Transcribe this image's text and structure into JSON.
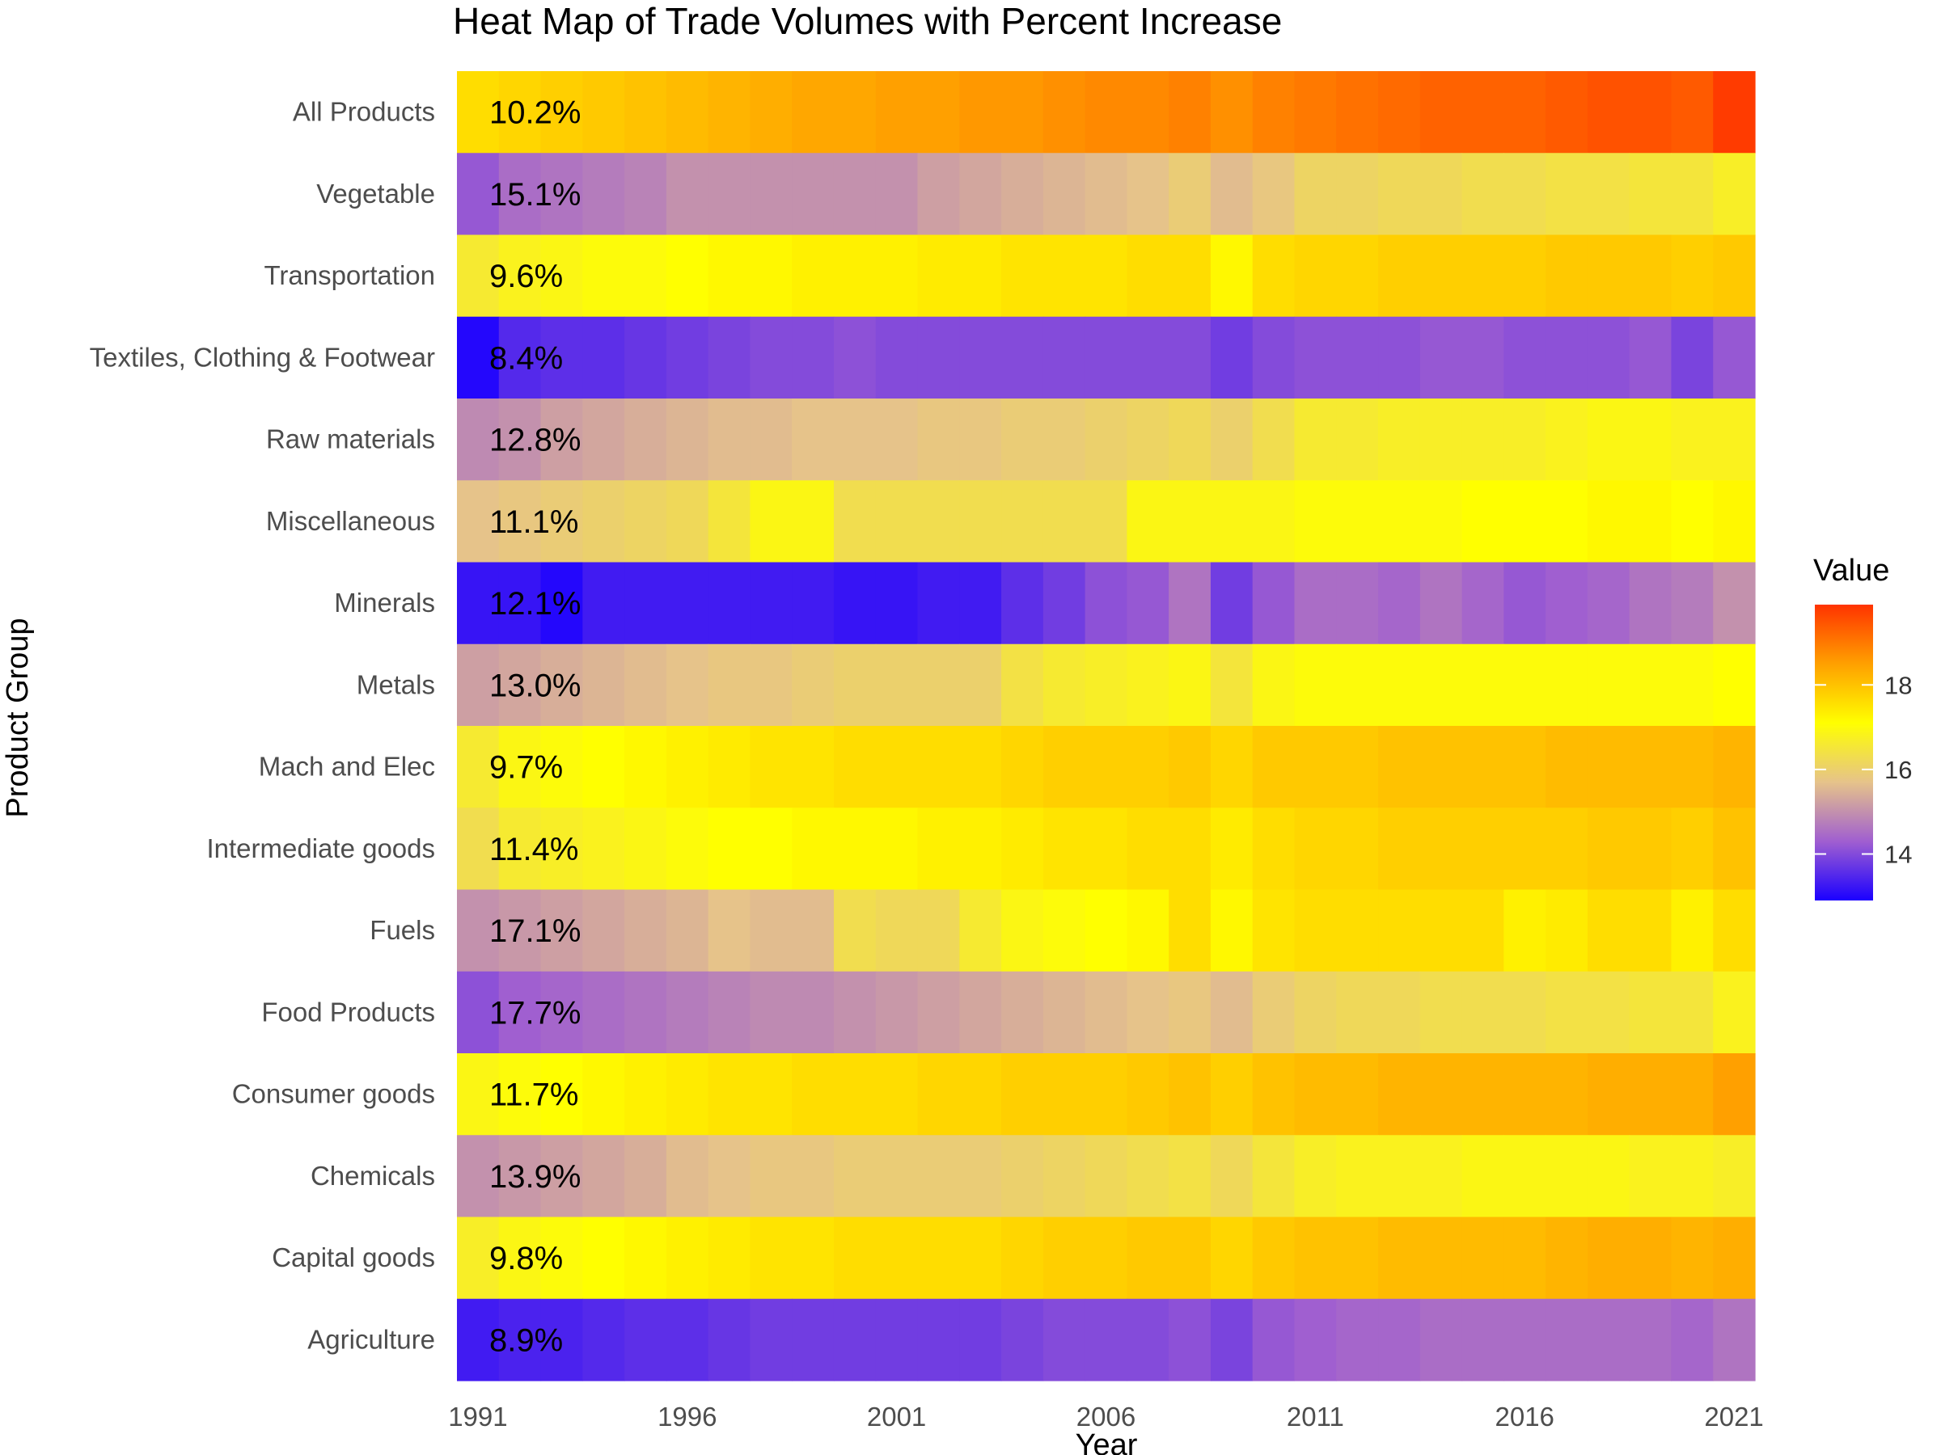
{
  "chart_data": {
    "type": "heatmap",
    "title": "Heat Map of Trade Volumes with Percent Increase",
    "xlabel": "Year",
    "ylabel": "Product Group",
    "x_ticks": [
      1991,
      1996,
      2001,
      2006,
      2011,
      2016,
      2021
    ],
    "years": [
      1991,
      1992,
      1993,
      1994,
      1995,
      1996,
      1997,
      1998,
      1999,
      2000,
      2001,
      2002,
      2003,
      2004,
      2005,
      2006,
      2007,
      2008,
      2009,
      2010,
      2011,
      2012,
      2013,
      2014,
      2015,
      2016,
      2017,
      2018,
      2019,
      2020,
      2021
    ],
    "legend": {
      "title": "Value",
      "ticks": [
        14,
        16,
        18
      ],
      "range": [
        12.9,
        19.9
      ],
      "position": "right"
    },
    "colorscale": [
      "#1b00ff",
      "#a05fd0",
      "#e6c38a",
      "#ffff00",
      "#ffa000",
      "#ff3300"
    ],
    "rows": [
      {
        "category": "All Products",
        "label": "10.2%",
        "values": [
          17.6,
          17.7,
          17.8,
          17.9,
          18.0,
          18.1,
          18.2,
          18.3,
          18.4,
          18.4,
          18.5,
          18.5,
          18.6,
          18.6,
          18.7,
          18.8,
          18.8,
          18.9,
          18.7,
          18.9,
          19.0,
          19.1,
          19.2,
          19.3,
          19.3,
          19.3,
          19.4,
          19.5,
          19.5,
          19.4,
          19.8
        ]
      },
      {
        "category": "Vegetable",
        "label": "15.1%",
        "values": [
          14.2,
          14.5,
          14.6,
          14.7,
          14.8,
          15.0,
          15.0,
          15.0,
          15.0,
          15.0,
          15.0,
          15.2,
          15.3,
          15.4,
          15.5,
          15.6,
          15.7,
          15.9,
          15.6,
          15.8,
          16.1,
          16.1,
          16.2,
          16.2,
          16.3,
          16.3,
          16.4,
          16.4,
          16.5,
          16.5,
          16.7
        ]
      },
      {
        "category": "Transportation",
        "label": "9.6%",
        "values": [
          16.6,
          16.8,
          16.9,
          17.0,
          17.0,
          17.1,
          17.2,
          17.2,
          17.3,
          17.3,
          17.3,
          17.4,
          17.4,
          17.5,
          17.5,
          17.5,
          17.6,
          17.6,
          17.2,
          17.6,
          17.7,
          17.7,
          17.8,
          17.8,
          17.8,
          17.8,
          17.9,
          17.9,
          17.9,
          17.8,
          17.9
        ]
      },
      {
        "category": "Textiles, Clothing & Footwear",
        "label": "8.4%",
        "values": [
          13.0,
          13.5,
          13.6,
          13.6,
          13.7,
          13.8,
          13.9,
          14.0,
          14.0,
          14.1,
          14.0,
          14.0,
          14.0,
          14.0,
          14.0,
          14.0,
          14.0,
          14.0,
          13.8,
          14.0,
          14.1,
          14.1,
          14.1,
          14.2,
          14.2,
          14.1,
          14.1,
          14.1,
          14.2,
          13.9,
          14.2
        ]
      },
      {
        "category": "Raw materials",
        "label": "12.8%",
        "values": [
          14.9,
          15.0,
          15.2,
          15.3,
          15.4,
          15.5,
          15.6,
          15.6,
          15.7,
          15.7,
          15.7,
          15.8,
          15.8,
          15.9,
          15.9,
          16.0,
          16.1,
          16.2,
          16.0,
          16.3,
          16.6,
          16.6,
          16.7,
          16.7,
          16.7,
          16.7,
          16.8,
          16.9,
          16.9,
          16.8,
          16.8
        ]
      },
      {
        "category": "Miscellaneous",
        "label": "11.1%",
        "values": [
          15.7,
          15.8,
          15.9,
          16.0,
          16.1,
          16.2,
          16.5,
          16.9,
          16.9,
          16.3,
          16.3,
          16.3,
          16.3,
          16.3,
          16.3,
          16.3,
          16.9,
          16.9,
          16.9,
          16.9,
          17.0,
          17.0,
          17.0,
          17.0,
          17.1,
          17.1,
          17.1,
          17.2,
          17.2,
          17.1,
          17.2
        ]
      },
      {
        "category": "Minerals",
        "label": "12.1%",
        "values": [
          13.2,
          13.2,
          13.0,
          13.3,
          13.3,
          13.3,
          13.3,
          13.3,
          13.3,
          13.2,
          13.2,
          13.3,
          13.3,
          13.6,
          13.8,
          14.1,
          14.2,
          14.6,
          13.8,
          14.2,
          14.5,
          14.5,
          14.4,
          14.6,
          14.4,
          14.2,
          14.3,
          14.4,
          14.6,
          14.7,
          15.0
        ]
      },
      {
        "category": "Metals",
        "label": "13.0%",
        "values": [
          15.2,
          15.3,
          15.4,
          15.5,
          15.6,
          15.7,
          15.8,
          15.8,
          15.9,
          16.0,
          16.0,
          16.0,
          16.0,
          16.4,
          16.6,
          16.7,
          16.8,
          16.9,
          16.5,
          16.9,
          17.0,
          17.0,
          17.0,
          17.0,
          17.0,
          17.0,
          17.0,
          17.0,
          17.0,
          17.0,
          17.1
        ]
      },
      {
        "category": "Mach and Elec",
        "label": "9.7%",
        "values": [
          16.6,
          16.9,
          17.0,
          17.1,
          17.2,
          17.3,
          17.4,
          17.5,
          17.5,
          17.6,
          17.6,
          17.6,
          17.6,
          17.7,
          17.8,
          17.8,
          17.8,
          17.9,
          17.7,
          17.9,
          17.9,
          17.9,
          18.0,
          18.0,
          18.0,
          18.0,
          18.1,
          18.1,
          18.1,
          18.1,
          18.2
        ]
      },
      {
        "category": "Intermediate goods",
        "label": "11.4%",
        "values": [
          16.3,
          16.6,
          16.7,
          16.8,
          16.9,
          17.0,
          17.1,
          17.1,
          17.2,
          17.2,
          17.2,
          17.3,
          17.3,
          17.4,
          17.5,
          17.5,
          17.6,
          17.6,
          17.4,
          17.6,
          17.7,
          17.7,
          17.8,
          17.8,
          17.8,
          17.8,
          17.8,
          17.9,
          17.9,
          17.8,
          18.0
        ]
      },
      {
        "category": "Fuels",
        "label": "17.1%",
        "values": [
          15.0,
          15.1,
          15.2,
          15.3,
          15.4,
          15.5,
          15.7,
          15.6,
          15.6,
          16.3,
          16.2,
          16.2,
          16.6,
          16.9,
          17.0,
          17.1,
          17.2,
          17.6,
          17.2,
          17.5,
          17.6,
          17.6,
          17.6,
          17.6,
          17.6,
          17.3,
          17.4,
          17.6,
          17.6,
          17.3,
          17.6
        ]
      },
      {
        "category": "Food Products",
        "label": "17.7%",
        "values": [
          14.1,
          14.3,
          14.4,
          14.5,
          14.6,
          14.7,
          14.8,
          14.9,
          14.9,
          15.0,
          15.1,
          15.2,
          15.3,
          15.4,
          15.5,
          15.6,
          15.7,
          15.8,
          15.6,
          15.9,
          16.1,
          16.2,
          16.2,
          16.3,
          16.3,
          16.3,
          16.4,
          16.4,
          16.5,
          16.5,
          16.8
        ]
      },
      {
        "category": "Consumer goods",
        "label": "11.7%",
        "values": [
          16.9,
          17.0,
          17.1,
          17.2,
          17.3,
          17.4,
          17.5,
          17.5,
          17.6,
          17.6,
          17.6,
          17.7,
          17.7,
          17.8,
          17.8,
          17.8,
          17.9,
          18.0,
          17.8,
          18.0,
          18.1,
          18.1,
          18.2,
          18.2,
          18.2,
          18.2,
          18.2,
          18.3,
          18.3,
          18.3,
          18.5
        ]
      },
      {
        "category": "Chemicals",
        "label": "13.9%",
        "values": [
          15.0,
          15.1,
          15.2,
          15.3,
          15.4,
          15.6,
          15.7,
          15.8,
          15.8,
          15.9,
          15.9,
          15.9,
          15.9,
          16.0,
          16.1,
          16.2,
          16.3,
          16.4,
          16.2,
          16.5,
          16.7,
          16.8,
          16.8,
          16.8,
          16.9,
          16.9,
          16.9,
          16.9,
          16.8,
          16.8,
          16.7
        ]
      },
      {
        "category": "Capital goods",
        "label": "9.8%",
        "values": [
          16.7,
          16.9,
          17.0,
          17.1,
          17.2,
          17.3,
          17.4,
          17.5,
          17.5,
          17.6,
          17.6,
          17.6,
          17.6,
          17.7,
          17.8,
          17.8,
          17.9,
          17.9,
          17.7,
          17.9,
          18.0,
          18.0,
          18.1,
          18.1,
          18.1,
          18.1,
          18.2,
          18.3,
          18.3,
          18.2,
          18.3
        ]
      },
      {
        "category": "Agriculture",
        "label": "8.9%",
        "values": [
          13.3,
          13.4,
          13.4,
          13.5,
          13.6,
          13.6,
          13.7,
          13.8,
          13.8,
          13.8,
          13.8,
          13.8,
          13.8,
          13.9,
          14.0,
          14.0,
          14.0,
          14.1,
          13.9,
          14.2,
          14.3,
          14.4,
          14.4,
          14.5,
          14.5,
          14.5,
          14.5,
          14.5,
          14.5,
          14.4,
          14.6
        ]
      }
    ]
  }
}
